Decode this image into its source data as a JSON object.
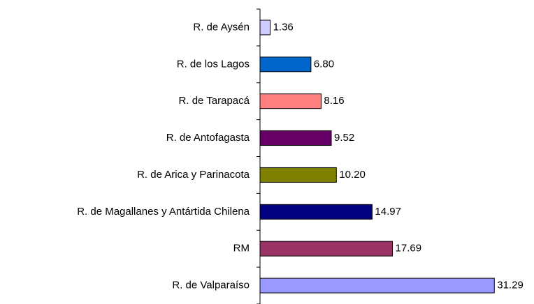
{
  "chart_data": {
    "type": "bar",
    "orientation": "horizontal",
    "categories": [
      "R. de Aysén",
      "R. de los Lagos",
      "R. de Tarapacá",
      "R. de Antofagasta",
      "R. de Arica y Parinacota",
      "R. de Magallanes y Antártida Chilena",
      "RM",
      "R. de Valparaíso"
    ],
    "values": [
      1.36,
      6.8,
      8.16,
      9.52,
      10.2,
      14.97,
      17.69,
      31.29
    ],
    "value_labels": [
      "1.36",
      "6.80",
      "8.16",
      "9.52",
      "10.20",
      "14.97",
      "17.69",
      "31.29"
    ],
    "colors": [
      "#ccccff",
      "#0066cc",
      "#ff8080",
      "#660066",
      "#808000",
      "#000080",
      "#993366",
      "#9999ff"
    ],
    "xlim": [
      0,
      35
    ]
  }
}
